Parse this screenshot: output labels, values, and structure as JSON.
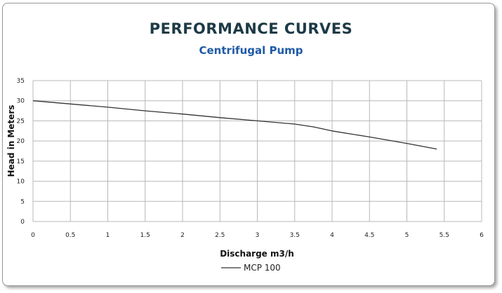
{
  "chart_data": {
    "type": "line",
    "title": "PERFORMANCE CURVES",
    "subtitle": "Centrifugal Pump",
    "xlabel": "Discharge m3/h",
    "ylabel": "Head in Meters",
    "xlim": [
      0,
      6
    ],
    "ylim": [
      0,
      35
    ],
    "x_ticks": [
      "0",
      "0.5",
      "1",
      "1.5",
      "2",
      "2.5",
      "3",
      "3.5",
      "4",
      "4.5",
      "5",
      "5.5",
      "6"
    ],
    "y_ticks": [
      "0",
      "5",
      "10",
      "15",
      "20",
      "25",
      "30",
      "35"
    ],
    "grid": true,
    "legend_position": "bottom",
    "series": [
      {
        "name": "MCP 100",
        "color": "#333333",
        "x": [
          0,
          0.5,
          1,
          1.5,
          2,
          2.5,
          3,
          3.5,
          3.75,
          4,
          4.5,
          5,
          5.4
        ],
        "y": [
          30,
          29.2,
          28.4,
          27.5,
          26.7,
          25.8,
          25,
          24.2,
          23.5,
          22.5,
          21,
          19.4,
          18
        ]
      }
    ]
  }
}
